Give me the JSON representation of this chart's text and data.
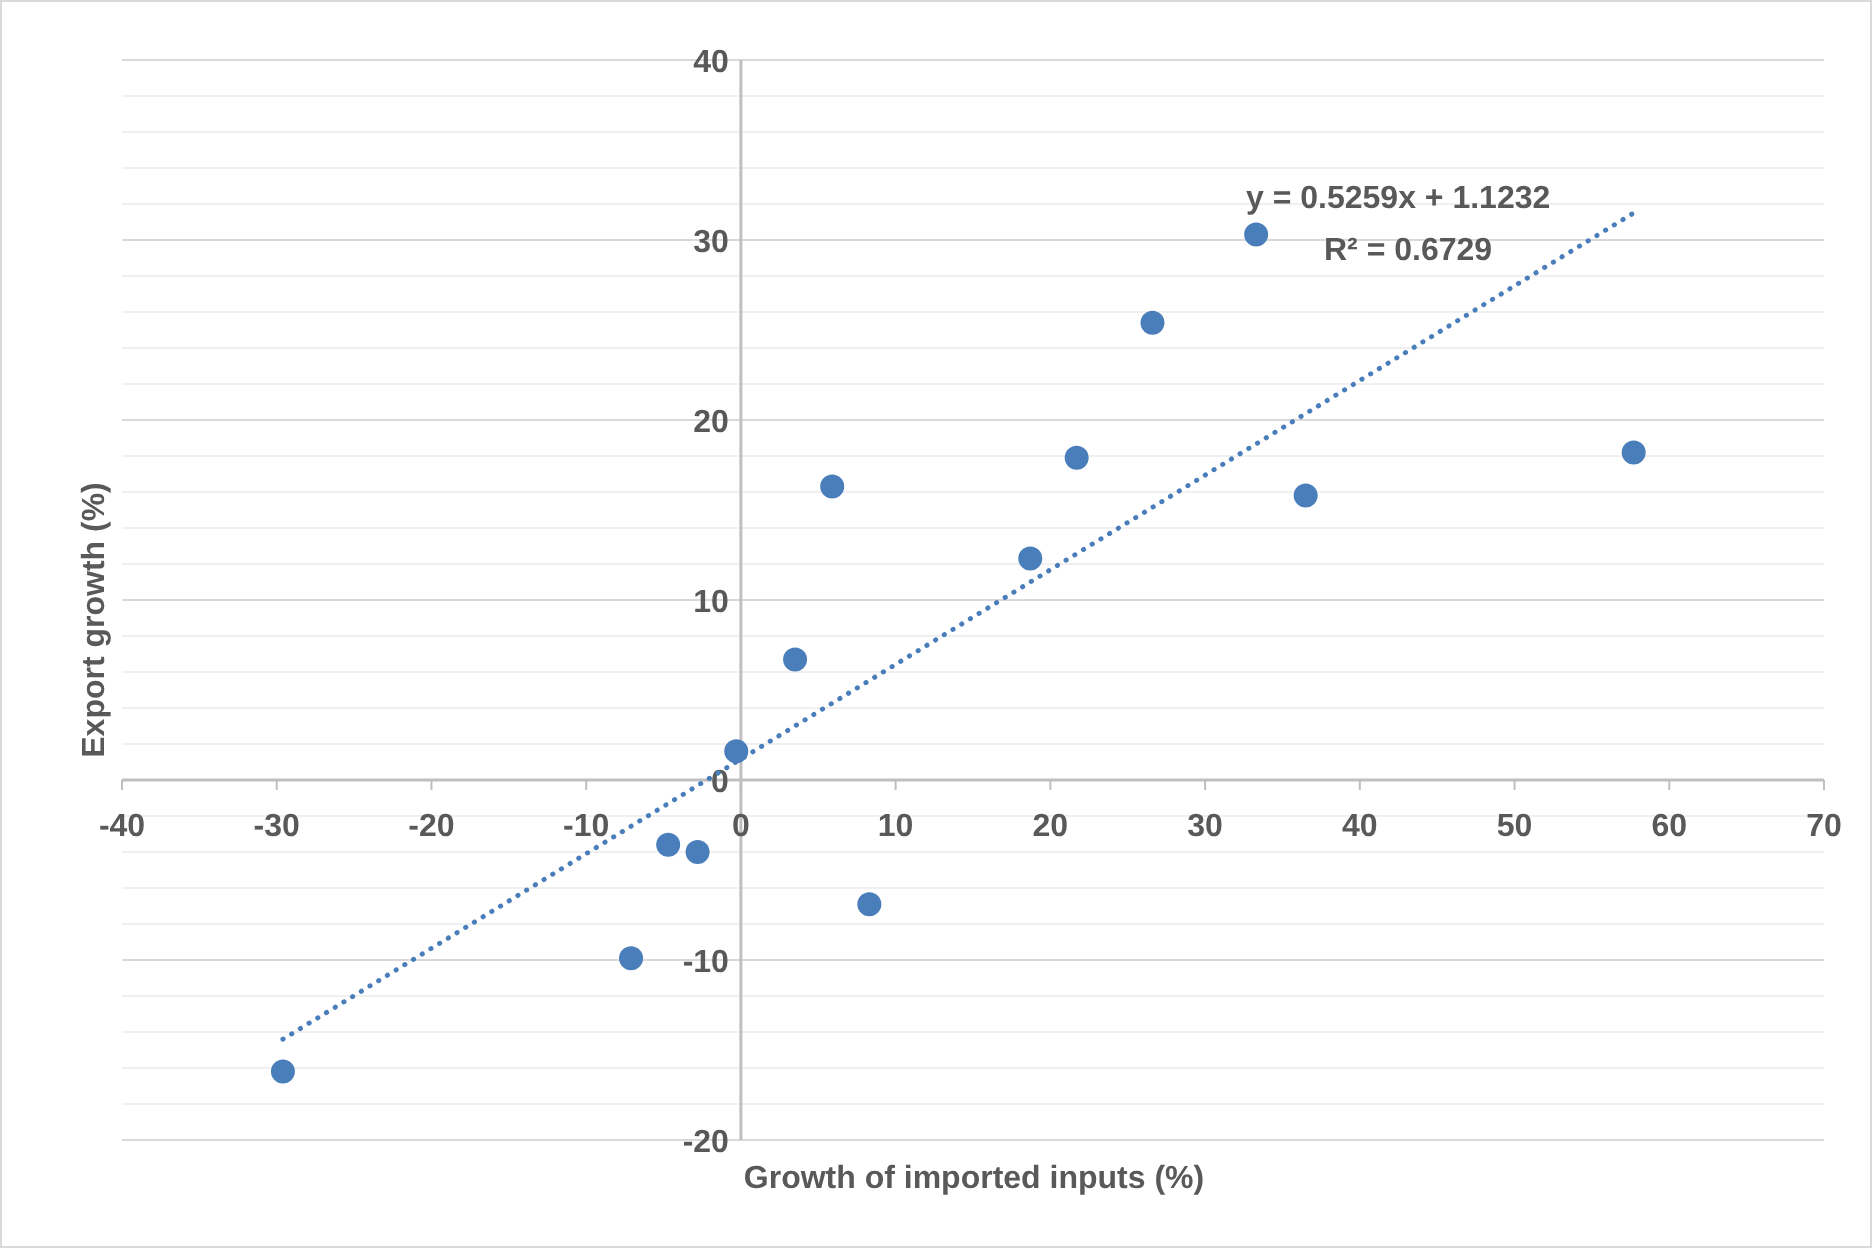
{
  "chart_data": {
    "type": "scatter",
    "xlabel": "Growth of imported inputs (%)",
    "ylabel": "Export growth (%)",
    "xlim": [
      -40,
      70
    ],
    "xticks": [
      -40,
      -30,
      -20,
      -10,
      0,
      10,
      20,
      30,
      40,
      50,
      60,
      70
    ],
    "ylim": [
      -20,
      40
    ],
    "yticks": [
      -20,
      {
        "value": -18,
        "label": null
      },
      {
        "value": -16,
        "label": null
      },
      {
        "value": -14,
        "label": null
      },
      {
        "value": -12,
        "label": null
      },
      -10,
      {
        "value": -8,
        "label": null
      },
      {
        "value": -6,
        "label": null
      },
      {
        "value": -4,
        "label": null
      },
      {
        "value": -2,
        "label": null
      },
      0,
      {
        "value": 2,
        "label": null
      },
      {
        "value": 4,
        "label": null
      },
      {
        "value": 6,
        "label": null
      },
      {
        "value": 8,
        "label": null
      },
      10,
      {
        "value": 12,
        "label": null
      },
      {
        "value": 14,
        "label": null
      },
      {
        "value": 16,
        "label": null
      },
      {
        "value": 18,
        "label": null
      },
      20,
      {
        "value": 22,
        "label": null
      },
      {
        "value": 24,
        "label": null
      },
      {
        "value": 26,
        "label": null
      },
      {
        "value": 28,
        "label": null
      },
      30,
      {
        "value": 32,
        "label": null
      },
      {
        "value": 34,
        "label": null
      },
      {
        "value": 36,
        "label": null
      },
      {
        "value": 38,
        "label": null
      },
      40
    ],
    "grid": "y",
    "marker": "circle",
    "series": [
      {
        "color": "#4a7ebb",
        "x": [
          -29.6,
          -7.1,
          -4.7,
          -2.8,
          -0.3,
          3.5,
          5.9,
          8.3,
          18.7,
          21.7,
          26.6,
          33.3,
          36.5,
          57.7
        ],
        "values": [
          -16.2,
          -9.9,
          -3.6,
          -4.0,
          1.6,
          6.7,
          16.3,
          -6.9,
          12.3,
          17.9,
          25.4,
          30.3,
          15.8,
          18.2
        ]
      },
      {
        "type": "line",
        "color": "#4a7ebb",
        "line_style": "dotted",
        "marker": "none",
        "x": [
          -29.6,
          57.7
        ],
        "values": [
          -14.4,
          31.5
        ]
      }
    ],
    "annotations": [
      "y = 0.5259x + 1.1232",
      "R² = 0.6729"
    ]
  }
}
